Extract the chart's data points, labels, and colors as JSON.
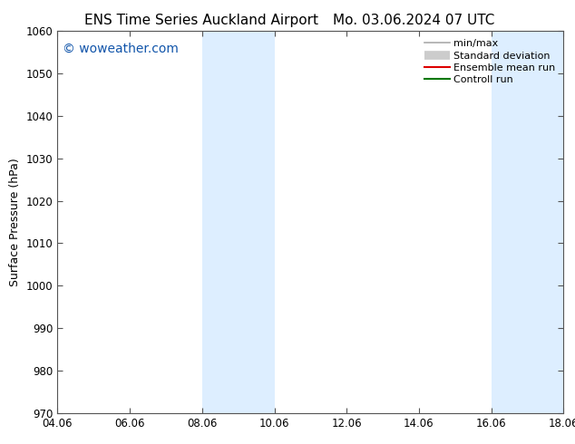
{
  "title_left": "ENS Time Series Auckland Airport",
  "title_right": "Mo. 03.06.2024 07 UTC",
  "ylabel": "Surface Pressure (hPa)",
  "ylim": [
    970,
    1060
  ],
  "yticks": [
    970,
    980,
    990,
    1000,
    1010,
    1020,
    1030,
    1040,
    1050,
    1060
  ],
  "xtick_labels": [
    "04.06",
    "06.06",
    "08.06",
    "10.06",
    "12.06",
    "14.06",
    "16.06",
    "18.06"
  ],
  "xtick_positions": [
    0,
    2,
    4,
    6,
    8,
    10,
    12,
    14
  ],
  "xlim": [
    0,
    14
  ],
  "shaded_regions": [
    {
      "start": 4,
      "end": 6
    },
    {
      "start": 12,
      "end": 14
    }
  ],
  "shaded_color": "#ddeeff",
  "watermark": "© woweather.com",
  "watermark_color": "#1155aa",
  "legend_entries": [
    {
      "label": "min/max",
      "color": "#aaaaaa",
      "lw": 1.2,
      "style": "line"
    },
    {
      "label": "Standard deviation",
      "color": "#cccccc",
      "lw": 7,
      "style": "thick"
    },
    {
      "label": "Ensemble mean run",
      "color": "#dd0000",
      "lw": 1.5,
      "style": "line"
    },
    {
      "label": "Controll run",
      "color": "#007700",
      "lw": 1.5,
      "style": "line"
    }
  ],
  "background_color": "#ffffff",
  "spine_color": "#555555",
  "title_fontsize": 11,
  "tick_fontsize": 8.5,
  "ylabel_fontsize": 9,
  "watermark_fontsize": 10,
  "legend_fontsize": 8
}
